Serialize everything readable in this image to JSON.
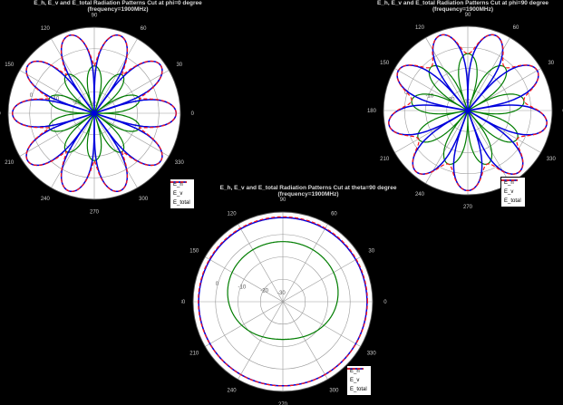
{
  "figure": {
    "background": "#000000",
    "grid_color": "#999999",
    "outer_circle_color": "#555555",
    "disc_color": "#ffffff",
    "angle_label_color": "#cccccc",
    "ring_label_color": "#555555"
  },
  "chart_data": [
    {
      "type": "polar-line",
      "title": "E_h, E_v and E_total Radiation Patterns Cut at phi=0 degree",
      "subtitle": "(frequency=1900MHz)",
      "angle_ticks_deg": [
        0,
        30,
        60,
        90,
        120,
        150,
        180,
        210,
        240,
        270,
        300,
        330
      ],
      "radial_ticks_db": [
        0,
        -10,
        -20,
        -30
      ],
      "rmax_db": 10,
      "rmin_db": -30,
      "legend_position": "bottom-right",
      "series": [
        {
          "name": "E_h",
          "color": "#007d00",
          "style": "solid",
          "width": 1.2,
          "model": {
            "kind": "lobes",
            "lobes": 10,
            "rot_deg": 0,
            "peak_db": -8,
            "null_db": -30,
            "exp": 0.5
          }
        },
        {
          "name": "E_v",
          "color": "#0000dd",
          "style": "solid",
          "width": 1.5,
          "model": {
            "kind": "lobes",
            "lobes": 10,
            "rot_deg": 90,
            "peak_db": 8,
            "null_db": -30,
            "exp": 0.35
          }
        },
        {
          "name": "E_total",
          "color": "#ff1515",
          "style": "dashed",
          "width": 1.2,
          "model": {
            "kind": "powersum",
            "of": [
              0,
              1
            ]
          }
        }
      ]
    },
    {
      "type": "polar-line",
      "title": "E_h, E_v and E_total Radiation Patterns Cut at phi=90 degree",
      "subtitle": "(frequency=1900MHz)",
      "angle_ticks_deg": [
        0,
        30,
        60,
        90,
        120,
        150,
        180,
        210,
        240,
        270,
        300,
        330
      ],
      "radial_ticks_db": [
        0,
        -10,
        -20,
        -30
      ],
      "rmax_db": 10,
      "rmin_db": -30,
      "legend_position": "bottom-right",
      "series": [
        {
          "name": "E_h",
          "color": "#007d00",
          "style": "solid",
          "width": 1.2,
          "model": {
            "kind": "lobes",
            "lobes": 9,
            "rot_deg": 70,
            "peak_db": -3,
            "null_db": -30,
            "exp": 0.5
          }
        },
        {
          "name": "E_v",
          "color": "#0000dd",
          "style": "solid",
          "width": 1.5,
          "model": {
            "kind": "lobes",
            "lobes": 9,
            "rot_deg": 90,
            "peak_db": 8,
            "null_db": -30,
            "exp": 0.4
          }
        },
        {
          "name": "E_total",
          "color": "#ff1515",
          "style": "dashed",
          "width": 1.2,
          "model": {
            "kind": "powersum",
            "of": [
              0,
              1
            ]
          }
        }
      ]
    },
    {
      "type": "polar-line",
      "title": "E_h, E_v and E_total Radiation Patterns Cut at theta=90 degree",
      "subtitle": "(frequency=1900MHz)",
      "angle_ticks_deg": [
        0,
        30,
        60,
        90,
        120,
        150,
        180,
        210,
        240,
        270,
        300,
        330
      ],
      "radial_ticks_db": [
        0,
        -10,
        -20,
        -30
      ],
      "rmax_db": 10,
      "rmin_db": -30,
      "legend_position": "bottom-right",
      "series": [
        {
          "name": "E_h",
          "color": "#007d00",
          "style": "solid",
          "width": 1.2,
          "model": {
            "kind": "blob",
            "a0": -7,
            "a1_sin": 5,
            "a2_cos2": 1.2
          }
        },
        {
          "name": "E_v",
          "color": "#0000dd",
          "style": "solid",
          "width": 1.5,
          "model": {
            "kind": "const",
            "db": 7.5
          }
        },
        {
          "name": "E_total",
          "color": "#ff1515",
          "style": "dashed",
          "width": 1.2,
          "model": {
            "kind": "powersum",
            "of": [
              0,
              1
            ]
          }
        }
      ]
    }
  ]
}
